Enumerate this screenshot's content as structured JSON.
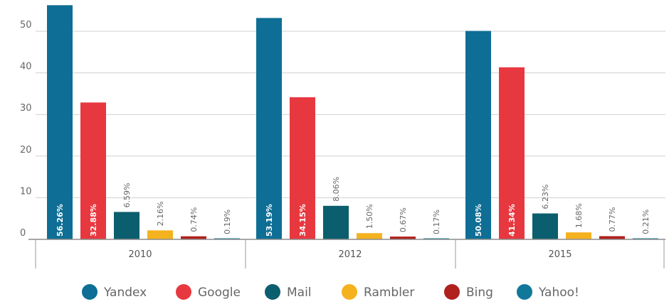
{
  "chart_data": {
    "type": "bar",
    "categories": [
      "2010",
      "2012",
      "2015"
    ],
    "ylim": [
      0,
      56
    ],
    "yticks": [
      0,
      10,
      20,
      30,
      40,
      50
    ],
    "grid": true,
    "legend_position": "bottom",
    "series": [
      {
        "name": "Yandex",
        "color": "#0e6e95",
        "values": [
          56.26,
          53.19,
          50.08
        ],
        "labels": [
          "56.26%",
          "53.19%",
          "50.08%"
        ]
      },
      {
        "name": "Google",
        "color": "#e8383f",
        "values": [
          32.88,
          34.15,
          41.34
        ],
        "labels": [
          "32.88%",
          "34.15%",
          "41.34%"
        ]
      },
      {
        "name": "Mail",
        "color": "#0b5e6e",
        "values": [
          6.59,
          8.06,
          6.23
        ],
        "labels": [
          "6.59%",
          "8.06%",
          "6.23%"
        ]
      },
      {
        "name": "Rambler",
        "color": "#f5b21f",
        "values": [
          2.16,
          1.5,
          1.68
        ],
        "labels": [
          "2.16%",
          "1.50%",
          "1.68%"
        ]
      },
      {
        "name": "Bing",
        "color": "#b0201c",
        "values": [
          0.74,
          0.67,
          0.77
        ],
        "labels": [
          "0.74%",
          "0.67%",
          "0.77%"
        ]
      },
      {
        "name": "Yahoo!",
        "color": "#12789a",
        "values": [
          0.19,
          0.17,
          0.21
        ],
        "labels": [
          "0.19%",
          "0.17%",
          "0.21%"
        ]
      }
    ]
  }
}
